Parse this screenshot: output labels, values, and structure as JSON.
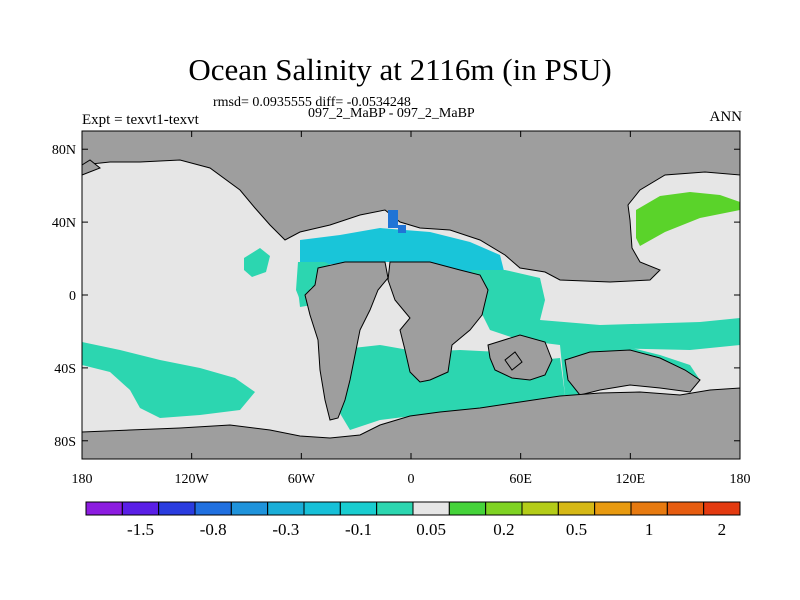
{
  "title": "Ocean Salinity at 2116m (in PSU)",
  "stats_line": "rmsd= 0.0935555 diff= -0.0534248",
  "experiment": "Expt = texvt1-texvt",
  "cases": "097_2_MaBP - 097_2_MaBP",
  "season": "ANN",
  "map": {
    "lat_labels": [
      "80N",
      "40N",
      "0",
      "40S",
      "80S"
    ],
    "lat_values": [
      80,
      40,
      0,
      -40,
      -80
    ],
    "lon_labels": [
      "180",
      "120W",
      "60W",
      "0",
      "60E",
      "120E",
      "180"
    ],
    "lon_values": [
      -180,
      -120,
      -60,
      0,
      60,
      120,
      180
    ],
    "colors": {
      "land": "#9e9e9e",
      "ocean_near_zero": "#e6e6e6",
      "diff_minus_0_1": "#2cd6b0",
      "diff_minus_0_3": "#19c5d9",
      "diff_minus_0_8": "#1f74d6",
      "diff_plus_0_2": "#5ad32a"
    }
  },
  "colorbar": {
    "colors": [
      "#8c1ce0",
      "#5a1fe6",
      "#2a3cdf",
      "#2070e0",
      "#1f93db",
      "#1aaed8",
      "#17c0d8",
      "#19cdd0",
      "#2cd6b0",
      "#e6e6e6",
      "#45d33a",
      "#7fd323",
      "#b4cc18",
      "#d6b816",
      "#e89a10",
      "#e77a10",
      "#e65c10",
      "#e33a10"
    ],
    "labels": [
      "-1.5",
      "-0.8",
      "-0.3",
      "-0.1",
      "0.05",
      "0.2",
      "0.5",
      "1",
      "2"
    ],
    "label_boundaries": [
      2,
      4,
      6,
      8,
      10,
      12,
      14,
      16,
      18
    ]
  }
}
